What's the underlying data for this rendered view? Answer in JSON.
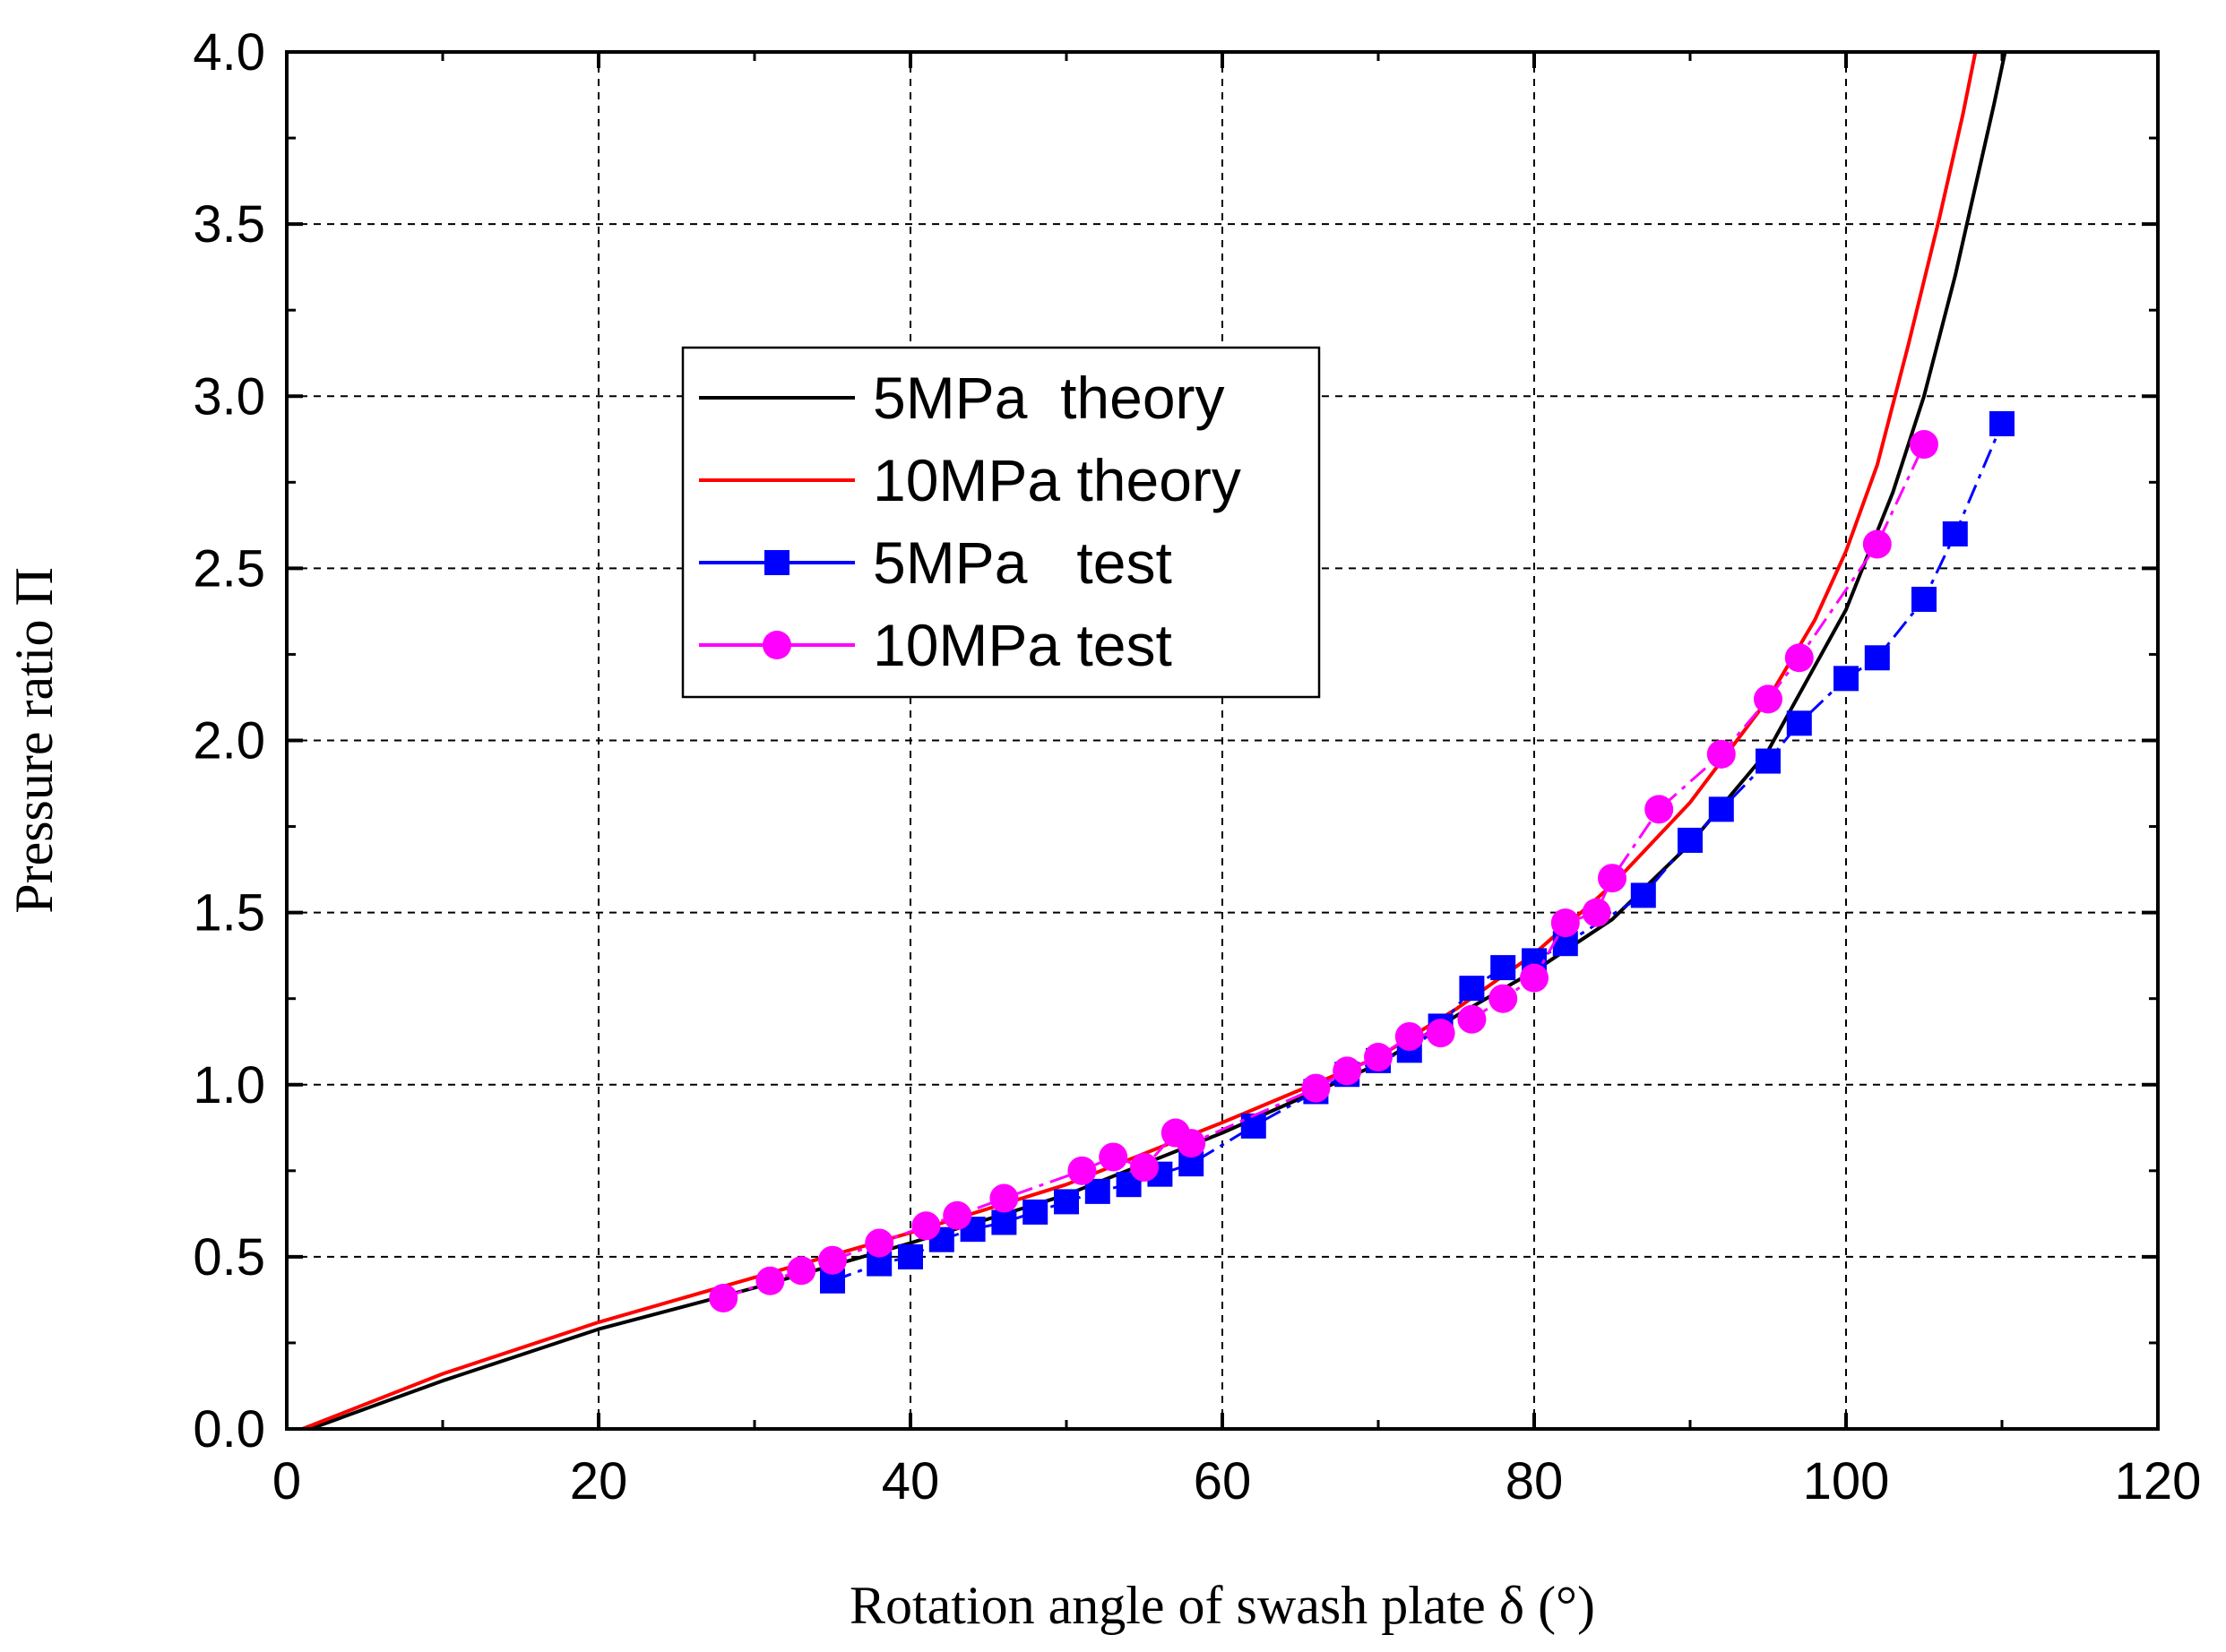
{
  "chart_data": {
    "type": "line",
    "title": "",
    "xlabel": "Rotation angle of swash plate δ (°)",
    "ylabel": "Pressure ratio Π",
    "xlim": [
      0,
      120
    ],
    "ylim": [
      0,
      4.0
    ],
    "grid": true,
    "legend_position": "center-left",
    "x_ticks": [
      "0",
      "20",
      "40",
      "60",
      "80",
      "100",
      "120"
    ],
    "y_ticks": [
      "0.0",
      "0.5",
      "1.0",
      "1.5",
      "2.0",
      "2.5",
      "3.0",
      "3.5",
      "4.0"
    ],
    "series": [
      {
        "name": "5MPa  theory",
        "color": "#000000",
        "marker": "none",
        "x": [
          1.5,
          10,
          20,
          30,
          40,
          50,
          60,
          70,
          75,
          80,
          85,
          90,
          95,
          100,
          103,
          105,
          107,
          108.5,
          109.5,
          110.2
        ],
        "y": [
          0.0,
          0.14,
          0.29,
          0.41,
          0.54,
          0.68,
          0.86,
          1.06,
          1.2,
          1.33,
          1.48,
          1.7,
          1.97,
          2.38,
          2.72,
          3.0,
          3.35,
          3.65,
          3.85,
          4.0
        ]
      },
      {
        "name": "10MPa theory",
        "color": "#ff0000",
        "marker": "none",
        "x": [
          1,
          10,
          20,
          30,
          40,
          50,
          60,
          70,
          75,
          80,
          85,
          90,
          95,
          98,
          100,
          102,
          104,
          106,
          107.5,
          108.3
        ],
        "y": [
          0.0,
          0.16,
          0.31,
          0.44,
          0.57,
          0.71,
          0.89,
          1.08,
          1.22,
          1.38,
          1.58,
          1.82,
          2.12,
          2.35,
          2.55,
          2.8,
          3.15,
          3.52,
          3.82,
          4.0
        ]
      },
      {
        "name": "5MPa   test",
        "color": "#0000ff",
        "marker": "square",
        "x": [
          35,
          38,
          40,
          42,
          44,
          46,
          48,
          50,
          52,
          54,
          56,
          58,
          62,
          66,
          68,
          70,
          72,
          74,
          76,
          78,
          80,
          82,
          87,
          90,
          92,
          95,
          97,
          100,
          102,
          105,
          107,
          110
        ],
        "y": [
          0.43,
          0.48,
          0.5,
          0.55,
          0.58,
          0.6,
          0.63,
          0.66,
          0.69,
          0.71,
          0.74,
          0.77,
          0.88,
          0.98,
          1.03,
          1.07,
          1.1,
          1.17,
          1.28,
          1.34,
          1.36,
          1.41,
          1.55,
          1.71,
          1.8,
          1.94,
          2.05,
          2.18,
          2.24,
          2.41,
          2.6,
          2.92
        ]
      },
      {
        "name": "10MPa test",
        "color": "#ff00ff",
        "marker": "circle",
        "x": [
          28,
          31,
          33,
          35,
          38,
          41,
          43,
          46,
          51,
          53,
          55,
          57,
          58,
          66,
          68,
          70,
          72,
          74,
          76,
          78,
          80,
          82,
          84,
          85,
          88,
          92,
          95,
          97,
          102,
          105
        ],
        "y": [
          0.38,
          0.43,
          0.46,
          0.49,
          0.54,
          0.59,
          0.62,
          0.67,
          0.75,
          0.79,
          0.76,
          0.86,
          0.83,
          0.99,
          1.04,
          1.08,
          1.14,
          1.15,
          1.19,
          1.25,
          1.31,
          1.47,
          1.5,
          1.6,
          1.8,
          1.96,
          2.12,
          2.24,
          2.57,
          2.86
        ]
      }
    ]
  }
}
